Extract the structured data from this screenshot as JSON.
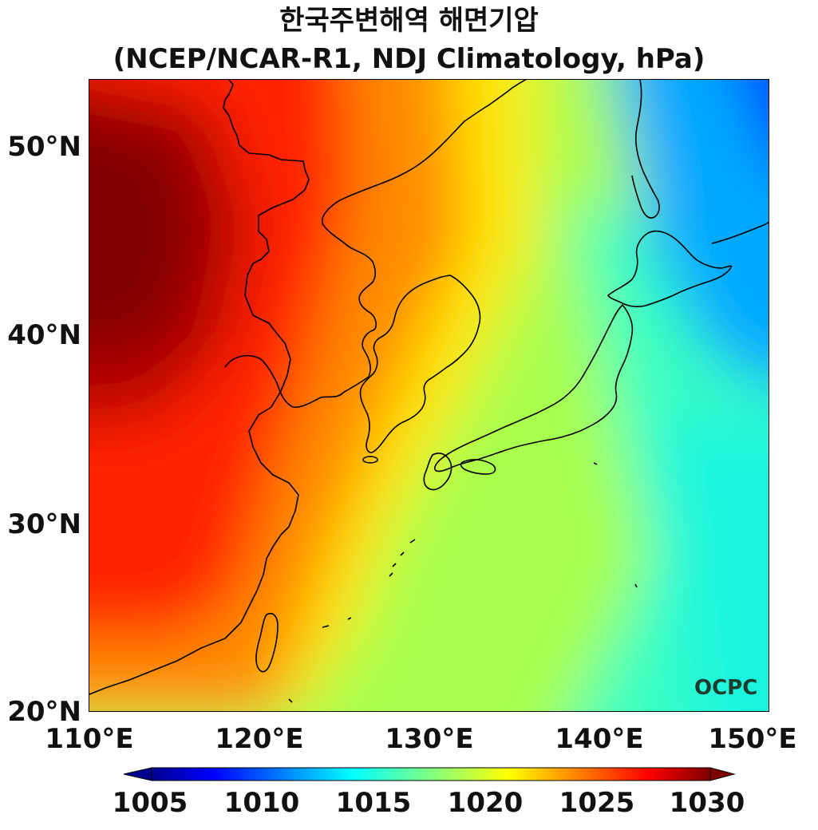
{
  "title": {
    "line1": "한국주변해역 해면기압",
    "line2": "(NCEP/NCAR-R1, NDJ Climatology, hPa)"
  },
  "map": {
    "lon_range": [
      110,
      150
    ],
    "lat_range": [
      20,
      53.5
    ],
    "lat_ticks": [
      "50°N",
      "40°N",
      "30°N",
      "20°N"
    ],
    "lon_ticks": [
      "110°E",
      "120°E",
      "130°E",
      "140°E",
      "150°E"
    ],
    "logo_text": "OCPC",
    "coastline_color": "#000000"
  },
  "colorbar": {
    "labels": [
      "1005",
      "1010",
      "1015",
      "1020",
      "1025",
      "1030"
    ],
    "min": 1005,
    "max": 1030,
    "extend": "both",
    "colormap": "jet"
  }
}
